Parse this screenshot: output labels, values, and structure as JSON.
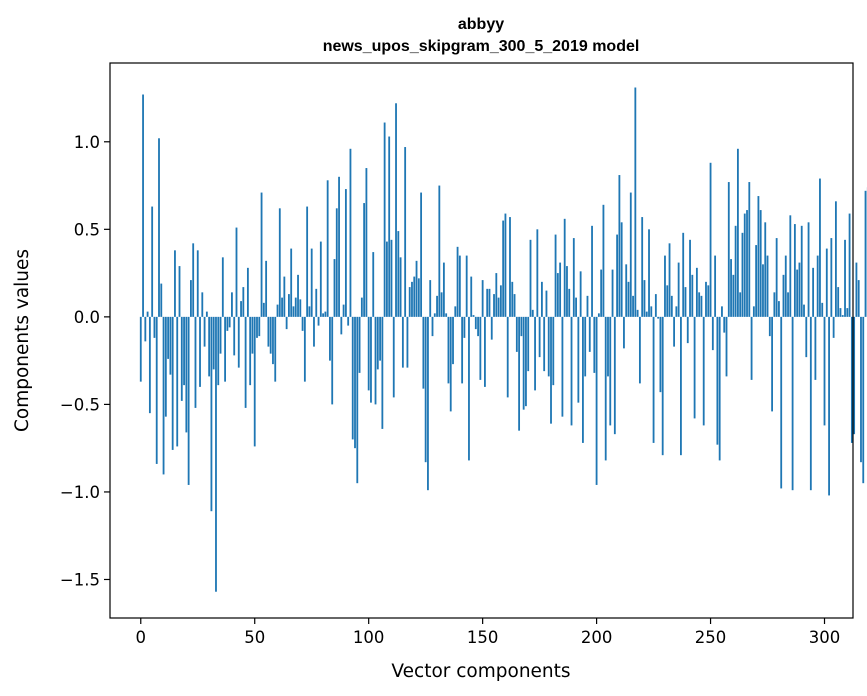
{
  "chart_data": {
    "type": "bar",
    "title": [
      "abbyy",
      "news_upos_skipgram_300_5_2019 model"
    ],
    "xlabel": "Vector components",
    "ylabel": "Components values",
    "xlim": [
      -13.5,
      312.5
    ],
    "ylim": [
      -1.72,
      1.45
    ],
    "xticks": [
      0,
      50,
      100,
      150,
      200,
      250,
      300
    ],
    "xtick_labels": [
      "0",
      "50",
      "100",
      "150",
      "200",
      "250",
      "300"
    ],
    "yticks": [
      -1.5,
      -1.0,
      -0.5,
      0.0,
      0.5,
      1.0
    ],
    "ytick_labels": [
      "−1.5",
      "−1.0",
      "−0.5",
      "0.0",
      "0.5",
      "1.0"
    ],
    "bar_color": "#1f77b4",
    "grid": false,
    "values": [
      -0.37,
      1.27,
      -0.14,
      0.03,
      -0.55,
      0.63,
      -0.12,
      -0.84,
      1.02,
      0.19,
      -0.9,
      -0.57,
      -0.24,
      -0.33,
      -0.76,
      0.38,
      -0.74,
      0.29,
      -0.48,
      -0.39,
      -0.66,
      -0.96,
      0.21,
      0.42,
      -0.52,
      0.38,
      -0.4,
      0.14,
      -0.17,
      0.03,
      -0.34,
      -1.11,
      -0.3,
      -1.57,
      -0.39,
      -0.21,
      0.34,
      -0.37,
      -0.08,
      -0.06,
      0.14,
      -0.22,
      0.51,
      -0.29,
      0.09,
      0.17,
      -0.52,
      0.28,
      -0.39,
      -0.21,
      -0.74,
      -0.12,
      -0.11,
      0.71,
      0.08,
      0.32,
      -0.17,
      -0.21,
      -0.27,
      -0.37,
      0.07,
      0.62,
      0.11,
      0.23,
      -0.07,
      0.13,
      0.39,
      0.06,
      0.11,
      0.24,
      0.1,
      -0.08,
      -0.37,
      0.63,
      0.06,
      0.39,
      -0.17,
      0.16,
      -0.05,
      0.43,
      0.02,
      0.03,
      0.78,
      -0.25,
      -0.5,
      0.33,
      0.62,
      0.8,
      -0.1,
      0.07,
      0.73,
      -0.05,
      0.96,
      -0.7,
      -0.75,
      -0.95,
      -0.32,
      0.11,
      0.65,
      0.85,
      -0.42,
      -0.49,
      0.37,
      -0.5,
      -0.3,
      -0.25,
      -0.64,
      1.11,
      0.43,
      1.03,
      0.44,
      -0.46,
      1.22,
      0.49,
      0.34,
      -0.29,
      0.97,
      -0.29,
      0.17,
      0.2,
      0.23,
      0.32,
      0.22,
      0.71,
      -0.41,
      -0.83,
      -0.99,
      0.21,
      -0.11,
      0.02,
      0.12,
      0.75,
      0.14,
      0.31,
      0.02,
      -0.38,
      -0.54,
      -0.27,
      0.06,
      0.4,
      0.35,
      -0.38,
      -0.12,
      0.35,
      -0.82,
      0.23,
      0.01,
      -0.07,
      -0.11,
      -0.36,
      0.21,
      -0.4,
      0.16,
      0.16,
      -0.13,
      0.13,
      0.25,
      0.11,
      0.18,
      0.55,
      0.59,
      -0.46,
      0.57,
      0.2,
      0.13,
      -0.2,
      -0.65,
      -0.11,
      -0.53,
      -0.51,
      -0.31,
      0.44,
      0.04,
      -0.42,
      0.5,
      -0.23,
      0.2,
      -0.31,
      0.15,
      -0.34,
      -0.61,
      -0.39,
      0.47,
      0.25,
      0.31,
      -0.57,
      0.56,
      0.29,
      0.16,
      -0.62,
      0.45,
      0.11,
      -0.49,
      0.26,
      -0.72,
      -0.34,
      0.12,
      -0.2,
      0.52,
      -0.32,
      -0.96,
      0.02,
      0.27,
      0.64,
      -0.82,
      -0.34,
      -0.62,
      0.27,
      -0.67,
      0.47,
      0.81,
      0.54,
      -0.18,
      0.3,
      0.2,
      0.71,
      0.12,
      1.31,
      0.04,
      -0.38,
      0.57,
      0.21,
      0.03,
      0.5,
      0.06,
      -0.72,
      0.13,
      -0.01,
      -0.43,
      -0.79,
      0.35,
      0.18,
      0.42,
      0.12,
      -0.17,
      0.06,
      0.31,
      -0.79,
      0.48,
      0.17,
      -0.15,
      0.44,
      0.24,
      -0.58,
      0.28,
      0.14,
      0.12,
      -0.62,
      0.2,
      0.18,
      0.88,
      -0.19,
      0.35,
      -0.73,
      -0.82,
      0.06,
      -0.09,
      -0.34,
      0.77,
      0.33,
      0.24,
      0.52,
      0.96,
      0.14,
      0.48,
      0.59,
      0.61,
      0.77,
      -0.36,
      0.06,
      0.41,
      0.69,
      0.61,
      0.3,
      0.54,
      0.35,
      -0.11,
      -0.54,
      0.14,
      0.45,
      0.09,
      -0.98,
      0.24,
      0.35,
      0.14,
      0.58,
      -0.99,
      0.53,
      0.27,
      0.31,
      0.52,
      0.07,
      -0.23,
      0.54,
      -0.99,
      0.28,
      -0.36,
      0.35,
      0.79,
      0.08,
      -0.62,
      0.39,
      -1.02,
      0.45,
      -0.12,
      0.66,
      0.17,
      0.05,
      0.01,
      0.44,
      0.05,
      0.59,
      -0.72,
      -0.67,
      0.31,
      0.21,
      -0.83,
      -0.95,
      0.72,
      0.74
    ]
  }
}
